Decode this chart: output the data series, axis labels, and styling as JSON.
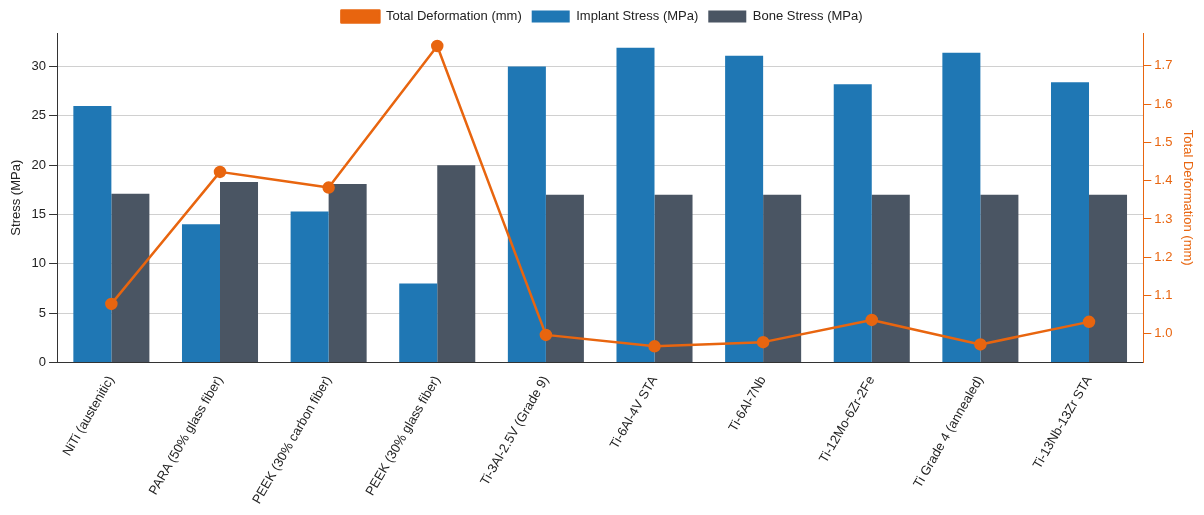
{
  "chart_data": {
    "type": "bar",
    "categories": [
      "NiTi (austenitic)",
      "PARA (50% glass fiber)",
      "PEEK (30% carbon fiber)",
      "PEEK (30% glass fiber)",
      "Ti-3Al-2.5V (Grade 9)",
      "Ti-6Al-4V STA",
      "Ti-6Al-7Nb",
      "Ti-12Mo-6Zr-2Fe",
      "Ti Grade 4 (annealed)",
      "Ti-13Nb-13Zr STA"
    ],
    "ylabel": "Stress (MPa)",
    "y2label": "Total Deformation (mm)",
    "series": [
      {
        "name": "Implant Stress (MPa)",
        "color": "#1f77b4",
        "values": [
          26,
          14,
          15.3,
          8,
          30,
          31.9,
          31.1,
          28.2,
          31.4,
          28.4
        ]
      },
      {
        "name": "Bone Stress (MPa)",
        "color": "#4a5563",
        "values": [
          17.1,
          18.3,
          18.1,
          20,
          17,
          17,
          17,
          17,
          17,
          17
        ]
      },
      {
        "name": "Total Deformation (mm)",
        "type": "line",
        "axis": "y2",
        "color": "#e8650f",
        "marker": "circle",
        "values": [
          1.078,
          1.423,
          1.382,
          1.752,
          0.997,
          0.967,
          0.978,
          1.036,
          0.972,
          1.031
        ]
      }
    ],
    "ylim": [
      0,
      33.4
    ],
    "yticks": [
      0,
      5,
      10,
      15,
      20,
      25,
      30
    ],
    "y2lim": [
      0.925,
      1.786
    ],
    "y2ticks": [
      {
        "value": 1.0,
        "label": "1.0"
      },
      1.1,
      1.2,
      1.3,
      1.4,
      1.5,
      1.6,
      1.7
    ],
    "grid": "y",
    "legend": "top"
  }
}
